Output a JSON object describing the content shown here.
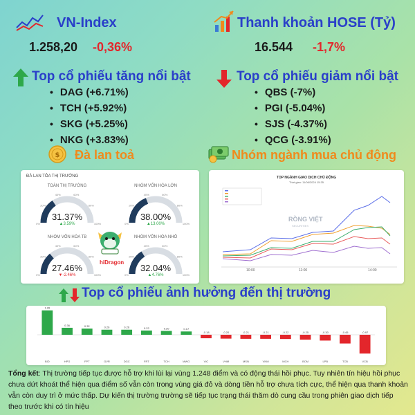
{
  "vnindex": {
    "title": "VN-Index",
    "value": "1.258,20",
    "change": "-0,36%"
  },
  "liquidity": {
    "title": "Thanh khoản HOSE (Tỷ)",
    "value": "16.544",
    "change": "-1,7%"
  },
  "gainers": {
    "title": "Top cổ phiếu tăng nổi bật",
    "items": [
      "DAG (+6.71%)",
      "TCH (+5.92%)",
      "SKG (+5.25%)",
      "NKG (+3.83%)"
    ]
  },
  "losers": {
    "title": "Top cổ phiếu giảm nổi bật",
    "items": [
      "QBS (-7%)",
      "PGI (-5.04%)",
      "SJS (-4.37%)",
      "QCG (-3.91%)"
    ]
  },
  "spread": {
    "title": "Đà lan toả",
    "card_title": "ĐÀ LAN TỎA THỊ TRƯỜNG",
    "brand": "hiDragon",
    "gauges": [
      {
        "label": "TOÀN THỊ TRƯỜNG",
        "value": "31.37%",
        "change": "▲3.59%",
        "direction": "up",
        "fraction": 0.3137
      },
      {
        "label": "NHÓM VỐN HÓA LỚN",
        "value": "38.00%",
        "change": "▲13.00%",
        "direction": "up",
        "fraction": 0.38
      },
      {
        "label": "NHÓM VỐN HÓA TB",
        "value": "27.46%",
        "change": "▼-2.46%",
        "direction": "down",
        "fraction": 0.2746
      },
      {
        "label": "NHÓM VỐN HÓA NHỎ",
        "value": "32.04%",
        "change": "▲4.76%",
        "direction": "up",
        "fraction": 0.3204
      }
    ],
    "ticks": [
      "20%",
      "40%",
      "60%",
      "80%",
      "0%",
      "100%"
    ]
  },
  "sector": {
    "title": "Nhóm ngành mua chủ động",
    "card_title": "TOP NGÀNH GIAO DỊCH CHỦ ĐỘNG",
    "card_subtitle": "Thời gian: 11/06/2024 15:35",
    "watermark": "RỒNG VIỆT",
    "watermark_sub": "SECURITIES",
    "x_ticks": [
      "10:00",
      "11:00",
      "14:00"
    ],
    "colors": [
      "#5b6ee8",
      "#f0a030",
      "#3cae6e",
      "#e85a5a",
      "#a070d0"
    ]
  },
  "impact": {
    "title": "Top cổ phiếu ảnh hưởng đến thị trường",
    "chart_data": {
      "type": "bar",
      "categories": [
        "BID",
        "HPG",
        "FPT",
        "GVR",
        "DGC",
        "FRT",
        "TCH",
        "MWG",
        "VIC",
        "VHM",
        "MSN",
        "VNM",
        "MCH",
        "BCM",
        "LPB",
        "TCB",
        "VCB"
      ],
      "values": [
        1.26,
        0.36,
        0.32,
        0.26,
        0.26,
        0.22,
        0.2,
        0.17,
        -0.18,
        -0.2,
        -0.21,
        -0.21,
        -0.22,
        -0.25,
        -0.3,
        -0.45,
        -0.97
      ],
      "labels": [
        "1.26",
        "0.36",
        "0.32",
        "0.26",
        "0.26",
        "0.22",
        "0.20",
        "0.17",
        "-0.18",
        "-0.20",
        "-0.21",
        "-0.21",
        "-0.22",
        "-0.25",
        "-0.30",
        "-0.45",
        "-0.97"
      ],
      "colors": {
        "positive": "#2ea84a",
        "negative": "#e3262b"
      }
    }
  },
  "summary": {
    "label": "Tổng kết",
    "text": ": Thị trường tiếp tục được hỗ trợ khi lùi lại vùng 1.248 điểm và có động thái hồi phục. Tuy nhiên tín hiệu hồi phục chưa dứt khoát thể hiện qua điểm số vẫn còn trong vùng giá đỏ và dòng tiền hỗ trợ chưa tích cực, thể hiện qua thanh khoản vẫn còn duy trì ở mức thấp. Dự kiến thị trường trường sẽ tiếp tục trạng thái thăm dò cung cầu trong phiên giao dịch tiếp theo trước khi có tín hiệu"
  }
}
